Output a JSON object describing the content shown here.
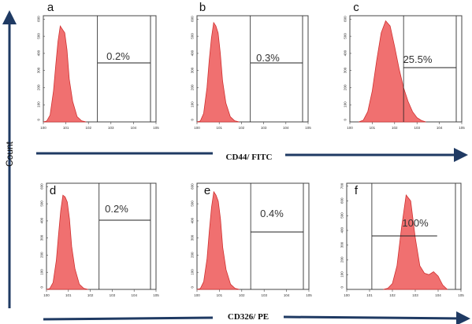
{
  "figure": {
    "y_axis_label": "Count",
    "row_axis_labels": [
      "CD44/ FITC",
      "CD326/ PE"
    ]
  },
  "chart_data": [
    {
      "type": "area",
      "panel": "a",
      "xlabel": "CD44/ FITC",
      "ylabel": "Count",
      "x_scale": "log",
      "x_ticks": [
        "10^0",
        "10^1",
        "10^2",
        "10^3",
        "10^4",
        "10^5"
      ],
      "y_tick_labels": [
        "0",
        "100",
        "200",
        "300",
        "400",
        "500",
        "600"
      ],
      "ylim": [
        0,
        620
      ],
      "gate": {
        "label": "0.2%",
        "range": [
          2.4,
          5.0
        ]
      },
      "x": [
        0.0,
        0.15,
        0.3,
        0.45,
        0.55,
        0.65,
        0.75,
        0.85,
        0.95,
        1.05,
        1.15,
        1.3,
        1.5,
        1.7,
        1.9
      ],
      "y": [
        0,
        5,
        40,
        180,
        330,
        470,
        560,
        540,
        520,
        420,
        250,
        120,
        30,
        6,
        0
      ]
    },
    {
      "type": "area",
      "panel": "b",
      "xlabel": "CD44/ FITC",
      "ylabel": "Count",
      "x_scale": "log",
      "x_ticks": [
        "10^0",
        "10^1",
        "10^2",
        "10^3",
        "10^4",
        "10^5"
      ],
      "y_tick_labels": [
        "0",
        "100",
        "200",
        "300",
        "400",
        "500",
        "600"
      ],
      "ylim": [
        0,
        620
      ],
      "gate": {
        "label": "0.3%",
        "range": [
          2.4,
          5.0
        ]
      },
      "x": [
        0.0,
        0.15,
        0.3,
        0.45,
        0.55,
        0.65,
        0.75,
        0.85,
        0.95,
        1.05,
        1.15,
        1.3,
        1.5,
        1.7,
        1.9
      ],
      "y": [
        0,
        5,
        50,
        200,
        360,
        490,
        580,
        560,
        520,
        400,
        240,
        110,
        30,
        6,
        0
      ]
    },
    {
      "type": "area",
      "panel": "c",
      "xlabel": "CD44/ FITC",
      "ylabel": "Count",
      "x_scale": "log",
      "x_ticks": [
        "10^0",
        "10^1",
        "10^2",
        "10^3",
        "10^4",
        "10^5"
      ],
      "y_tick_labels": [
        "0",
        "100",
        "200",
        "300",
        "400",
        "500",
        "600"
      ],
      "ylim": [
        0,
        620
      ],
      "gate": {
        "label": "25.5%",
        "range": [
          2.4,
          5.0
        ]
      },
      "x": [
        0.4,
        0.6,
        0.8,
        1.0,
        1.2,
        1.4,
        1.6,
        1.8,
        2.0,
        2.2,
        2.4,
        2.6,
        2.8,
        3.0,
        3.2,
        3.4
      ],
      "y": [
        0,
        10,
        60,
        180,
        360,
        520,
        590,
        560,
        440,
        310,
        200,
        120,
        60,
        25,
        8,
        0
      ]
    },
    {
      "type": "area",
      "panel": "d",
      "xlabel": "CD326/ PE",
      "ylabel": "Count",
      "x_scale": "log",
      "x_ticks": [
        "10^0",
        "10^1",
        "10^2",
        "10^3",
        "10^4",
        "10^5"
      ],
      "y_tick_labels": [
        "0",
        "100",
        "200",
        "300",
        "400",
        "500",
        "600"
      ],
      "ylim": [
        0,
        620
      ],
      "gate": {
        "label": "0.2%",
        "range": [
          2.4,
          5.0
        ]
      },
      "x": [
        0.0,
        0.15,
        0.3,
        0.45,
        0.55,
        0.65,
        0.75,
        0.85,
        0.95,
        1.05,
        1.15,
        1.3,
        1.5,
        1.7,
        1.9
      ],
      "y": [
        0,
        5,
        40,
        170,
        320,
        460,
        550,
        540,
        510,
        410,
        250,
        120,
        30,
        6,
        0
      ]
    },
    {
      "type": "area",
      "panel": "e",
      "xlabel": "CD326/ PE",
      "ylabel": "Count",
      "x_scale": "log",
      "x_ticks": [
        "10^0",
        "10^1",
        "10^2",
        "10^3",
        "10^4",
        "10^5"
      ],
      "y_tick_labels": [
        "0",
        "100",
        "200",
        "300",
        "400",
        "500",
        "600"
      ],
      "ylim": [
        0,
        620
      ],
      "gate": {
        "label": "0.4%",
        "range": [
          2.4,
          5.0
        ]
      },
      "x": [
        0.0,
        0.15,
        0.3,
        0.45,
        0.55,
        0.65,
        0.75,
        0.85,
        0.95,
        1.05,
        1.15,
        1.3,
        1.5,
        1.7,
        1.9
      ],
      "y": [
        0,
        5,
        45,
        180,
        340,
        480,
        570,
        550,
        515,
        410,
        245,
        115,
        30,
        6,
        0
      ]
    },
    {
      "type": "area",
      "panel": "f",
      "xlabel": "CD326/ PE",
      "ylabel": "Count",
      "x_scale": "log",
      "x_ticks": [
        "10^0",
        "10^1",
        "10^2",
        "10^3",
        "10^4",
        "10^5"
      ],
      "y_tick_labels": [
        "0",
        "100",
        "200",
        "300",
        "400",
        "500",
        "600",
        "700"
      ],
      "ylim": [
        0,
        720
      ],
      "gate": {
        "label": "100%",
        "range": [
          1.1,
          4.2
        ]
      },
      "x": [
        1.6,
        1.8,
        2.0,
        2.2,
        2.4,
        2.6,
        2.8,
        3.0,
        3.2,
        3.4,
        3.6,
        3.8,
        4.0,
        4.2,
        4.4
      ],
      "y": [
        0,
        8,
        40,
        160,
        420,
        640,
        600,
        350,
        160,
        110,
        100,
        120,
        90,
        30,
        0
      ]
    }
  ],
  "colors": {
    "histogram_fill": "#f07070",
    "histogram_stroke": "#d03030",
    "axis_arrow": "#1f3a63",
    "frame": "#444444",
    "gate_line": "#222222"
  }
}
